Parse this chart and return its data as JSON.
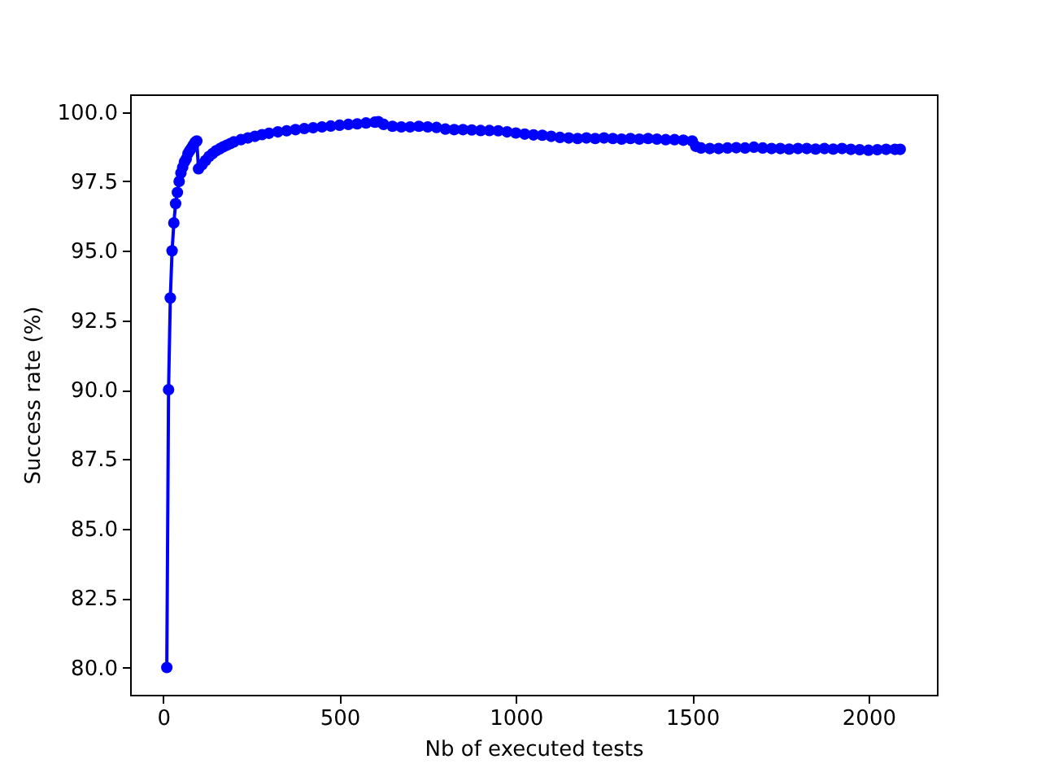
{
  "chart_data": {
    "type": "line",
    "xlabel": "Nb of executed tests",
    "ylabel": "Success rate (%)",
    "x": [
      10,
      15,
      20,
      25,
      30,
      35,
      40,
      45,
      50,
      55,
      60,
      65,
      70,
      75,
      80,
      85,
      90,
      95,
      100,
      110,
      120,
      130,
      140,
      150,
      160,
      170,
      180,
      190,
      200,
      220,
      240,
      260,
      280,
      300,
      325,
      350,
      375,
      400,
      425,
      450,
      475,
      500,
      525,
      550,
      575,
      600,
      610,
      625,
      650,
      675,
      700,
      725,
      750,
      775,
      800,
      825,
      850,
      875,
      900,
      925,
      950,
      975,
      1000,
      1025,
      1050,
      1075,
      1100,
      1125,
      1150,
      1175,
      1200,
      1225,
      1250,
      1275,
      1300,
      1325,
      1350,
      1375,
      1400,
      1425,
      1450,
      1475,
      1500,
      1510,
      1525,
      1550,
      1575,
      1600,
      1625,
      1650,
      1675,
      1700,
      1725,
      1750,
      1775,
      1800,
      1825,
      1850,
      1875,
      1900,
      1925,
      1950,
      1975,
      2000,
      2025,
      2050,
      2075,
      2090
    ],
    "series": [
      {
        "color": "#0000ff",
        "values": [
          80.0,
          90.0,
          93.3,
          95.0,
          96.0,
          96.7,
          97.1,
          97.5,
          97.8,
          98.0,
          98.2,
          98.3,
          98.5,
          98.6,
          98.7,
          98.8,
          98.9,
          98.95,
          97.95,
          98.1,
          98.25,
          98.4,
          98.5,
          98.6,
          98.67,
          98.74,
          98.8,
          98.86,
          98.92,
          99.0,
          99.06,
          99.12,
          99.18,
          99.23,
          99.28,
          99.32,
          99.36,
          99.4,
          99.43,
          99.46,
          99.49,
          99.52,
          99.55,
          99.57,
          99.6,
          99.63,
          99.65,
          99.55,
          99.48,
          99.46,
          99.46,
          99.48,
          99.46,
          99.44,
          99.38,
          99.36,
          99.36,
          99.35,
          99.33,
          99.33,
          99.32,
          99.28,
          99.24,
          99.2,
          99.17,
          99.16,
          99.12,
          99.08,
          99.06,
          99.04,
          99.06,
          99.04,
          99.06,
          99.04,
          99.02,
          99.04,
          99.02,
          99.04,
          99.02,
          99.0,
          99.0,
          98.98,
          98.95,
          98.76,
          98.7,
          98.68,
          98.68,
          98.7,
          98.71,
          98.7,
          98.73,
          98.7,
          98.68,
          98.68,
          98.66,
          98.68,
          98.68,
          98.66,
          98.68,
          98.66,
          98.68,
          98.65,
          98.64,
          98.62,
          98.64,
          98.65,
          98.65,
          98.65
        ]
      }
    ],
    "xlim": [
      -94,
      2194
    ],
    "ylim": [
      79.02,
      100.63
    ],
    "xticks": [
      0,
      500,
      1000,
      1500,
      2000
    ],
    "yticks": [
      {
        "value": 80,
        "label": "80.0"
      },
      {
        "value": 82.5,
        "label": "82.5"
      },
      {
        "value": 85,
        "label": "85.0"
      },
      {
        "value": 87.5,
        "label": "87.5"
      },
      {
        "value": 90,
        "label": "90.0"
      },
      {
        "value": 92.5,
        "label": "92.5"
      },
      {
        "value": 95,
        "label": "95.0"
      },
      {
        "value": 97.5,
        "label": "97.5"
      },
      {
        "value": 100,
        "label": "100.0"
      }
    ],
    "marker": "circle",
    "grid": false
  }
}
